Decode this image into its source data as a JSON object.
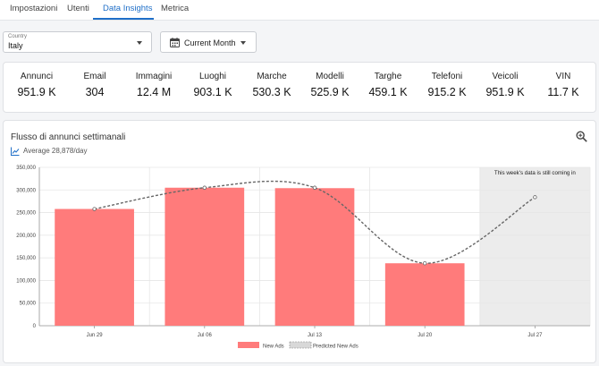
{
  "tabs": [
    {
      "label": "Impostazioni"
    },
    {
      "label": "Utenti"
    },
    {
      "label": "Data Insights",
      "active": true
    },
    {
      "label": "Metrica"
    }
  ],
  "filters": {
    "country_label": "Country",
    "country_value": "Italy",
    "period_value": "Current Month"
  },
  "stats": [
    {
      "label": "Annunci",
      "value": "951.9 K"
    },
    {
      "label": "Email",
      "value": "304"
    },
    {
      "label": "Immagini",
      "value": "12.4 M"
    },
    {
      "label": "Luoghi",
      "value": "903.1 K"
    },
    {
      "label": "Marche",
      "value": "530.3 K"
    },
    {
      "label": "Modelli",
      "value": "525.9 K"
    },
    {
      "label": "Targhe",
      "value": "459.1 K"
    },
    {
      "label": "Telefoni",
      "value": "915.2 K"
    },
    {
      "label": "Veicoli",
      "value": "951.9 K"
    },
    {
      "label": "VIN",
      "value": "11.7 K"
    }
  ],
  "chart_header": {
    "title": "Flusso di annunci settimanali",
    "subtitle": "Average 28,878/day"
  },
  "colors": {
    "accent": "#1f6fc8",
    "bar": "#ff7b7b",
    "predicted": "#666666",
    "incomplete_bg": "#ececec"
  },
  "chart_data": {
    "type": "bar",
    "categories": [
      "Jun 29",
      "Jul 06",
      "Jul 13",
      "Jul 20",
      "Jul 27"
    ],
    "series": [
      {
        "name": "New Ads",
        "type": "bar",
        "values": [
          258000,
          305000,
          304000,
          138000,
          null
        ]
      },
      {
        "name": "Predicted New Ads",
        "type": "line",
        "style": "dashed",
        "values": [
          258000,
          305000,
          305000,
          138000,
          284000
        ]
      }
    ],
    "ylim": [
      0,
      350000
    ],
    "yticks": [
      "0",
      "50,000",
      "100,000",
      "150,000",
      "200,000",
      "250,000",
      "300,000",
      "350,000"
    ],
    "ytick_values": [
      0,
      50000,
      100000,
      150000,
      200000,
      250000,
      300000,
      350000
    ],
    "annotation": "This week's data is still coming in",
    "incomplete_category_index": 4,
    "legend_position": "bottom",
    "grid": true
  }
}
